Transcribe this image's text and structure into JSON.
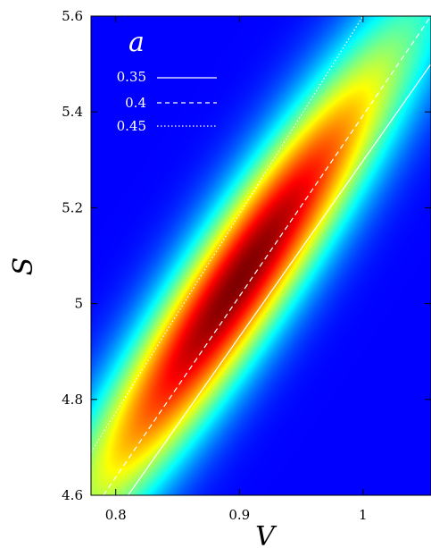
{
  "colors": {
    "background": "#0000ff",
    "lines": "#ffffff",
    "colormap": [
      "#0000ff",
      "#00ffff",
      "#00ff00",
      "#ffff00",
      "#ff0000"
    ]
  },
  "chart_data": {
    "type": "heatmap",
    "panel_label": "a",
    "xlabel": "V",
    "ylabel": "S",
    "xlim": [
      0.78,
      1.055
    ],
    "ylim": [
      4.6,
      5.6
    ],
    "x_ticks": [
      {
        "value": 0.8,
        "label": "0.8"
      },
      {
        "value": 0.9,
        "label": "0.9"
      },
      {
        "value": 1.0,
        "label": "1"
      }
    ],
    "y_ticks": [
      {
        "value": 4.6,
        "label": "4.6"
      },
      {
        "value": 4.8,
        "label": "4.8"
      },
      {
        "value": 5.0,
        "label": "5"
      },
      {
        "value": 5.2,
        "label": "5.2"
      },
      {
        "value": 5.4,
        "label": "5.4"
      },
      {
        "value": 5.6,
        "label": "5.6"
      }
    ],
    "density": {
      "peak": [
        0.9,
        5.05
      ],
      "direction": [
        0.1,
        0.4
      ],
      "sigma_along": 1.0,
      "sigma_across": 0.2,
      "colorscale": "jet"
    },
    "series": [
      {
        "name": "0.35",
        "style": "solid",
        "points": [
          [
            0.81,
            4.6
          ],
          [
            1.055,
            5.5
          ]
        ]
      },
      {
        "name": "0.4",
        "style": "dashed",
        "points": [
          [
            0.79,
            4.6
          ],
          [
            1.055,
            5.6
          ]
        ]
      },
      {
        "name": "0.45",
        "style": "dotted",
        "points": [
          [
            0.78,
            4.69
          ],
          [
            1.0,
            5.6
          ]
        ]
      }
    ],
    "legend_position": "top-left",
    "grid": false
  }
}
